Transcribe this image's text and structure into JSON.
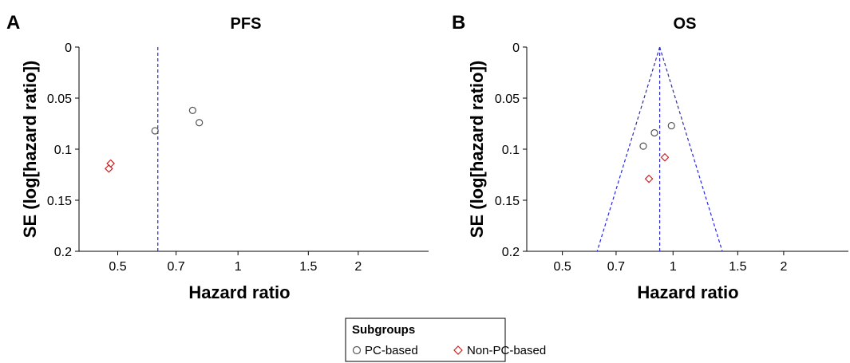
{
  "legend": {
    "title": "Subgroups",
    "entries": [
      {
        "label": "PC-based",
        "marker": "circle",
        "color": "#555555"
      },
      {
        "label": "Non-PC-based",
        "marker": "diamond",
        "color": "#cc2222"
      }
    ]
  },
  "colors": {
    "reference_line": "#2a2ad0",
    "pc_based": "#555555",
    "non_pc_based": "#cc2222"
  },
  "chart_data": [
    {
      "panel": "A",
      "type": "scatter",
      "title": "PFS",
      "xlabel": "Hazard ratio",
      "ylabel": "SE (log[hazard ratio])",
      "x_scale": "log",
      "xlim": [
        0.4,
        3.0
      ],
      "ylim": [
        0,
        0.2
      ],
      "y_inverted": true,
      "xticks": [
        0.5,
        0.7,
        1,
        1.5,
        2
      ],
      "xtick_labels": [
        "0.5",
        "0.7",
        "1",
        "1.5",
        "2"
      ],
      "yticks": [
        0,
        0.05,
        0.1,
        0.15,
        0.2
      ],
      "ytick_labels": [
        "0",
        "0.05",
        "0.1",
        "0.15",
        "0.2"
      ],
      "reference_hr": 0.63,
      "funnel": false,
      "series": [
        {
          "name": "PC-based",
          "marker": "circle",
          "points": [
            [
              0.62,
              0.082
            ],
            [
              0.77,
              0.062
            ],
            [
              0.8,
              0.074
            ]
          ]
        },
        {
          "name": "Non-PC-based",
          "marker": "diamond",
          "points": [
            [
              0.48,
              0.114
            ],
            [
              0.475,
              0.119
            ]
          ]
        }
      ]
    },
    {
      "panel": "B",
      "type": "scatter",
      "title": "OS",
      "xlabel": "Hazard ratio",
      "ylabel": "SE (log[hazard ratio])",
      "x_scale": "log",
      "xlim": [
        0.4,
        3.0
      ],
      "ylim": [
        0,
        0.2
      ],
      "y_inverted": true,
      "xticks": [
        0.5,
        0.7,
        1,
        1.5,
        2
      ],
      "xtick_labels": [
        "0.5",
        "0.7",
        "1",
        "1.5",
        "2"
      ],
      "yticks": [
        0,
        0.05,
        0.1,
        0.15,
        0.2
      ],
      "ytick_labels": [
        "0",
        "0.05",
        "0.1",
        "0.15",
        "0.2"
      ],
      "reference_hr": 0.92,
      "funnel": true,
      "series": [
        {
          "name": "PC-based",
          "marker": "circle",
          "points": [
            [
              0.83,
              0.097
            ],
            [
              0.89,
              0.084
            ],
            [
              0.99,
              0.077
            ]
          ]
        },
        {
          "name": "Non-PC-based",
          "marker": "diamond",
          "points": [
            [
              0.95,
              0.108
            ],
            [
              0.86,
              0.129
            ]
          ]
        }
      ]
    }
  ]
}
